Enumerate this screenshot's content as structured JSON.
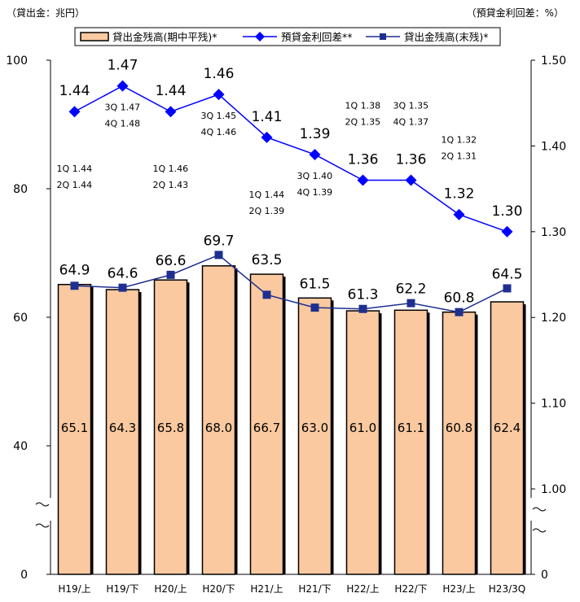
{
  "chart_data": {
    "type": "bar",
    "left_unit_label": "（貸出金：兆円）",
    "right_unit_label": "（預貸金利回差：%）",
    "categories": [
      "H19/上",
      "H19/下",
      "H20/上",
      "H20/下",
      "H21/上",
      "H21/下",
      "H22/上",
      "H22/下",
      "H23/上",
      "H23/3Q"
    ],
    "left_axis": {
      "ticks": [
        0,
        40,
        60,
        80,
        100
      ],
      "break": "0-40",
      "ylim": [
        40,
        100
      ]
    },
    "right_axis": {
      "ticks": [
        0,
        1.0,
        1.1,
        1.2,
        1.3,
        1.4,
        1.5
      ],
      "tick_labels": [
        "0",
        "1.00",
        "1.10",
        "1.20",
        "1.30",
        "1.40",
        "1.50"
      ],
      "break": "0-1.00",
      "ylim": [
        1.0,
        1.5
      ]
    },
    "series": [
      {
        "name": "貸出金残高(期中平残)*",
        "kind": "bar",
        "axis": "left",
        "color": "#FAC9A0",
        "values": [
          65.1,
          64.3,
          65.8,
          68.0,
          66.7,
          63.0,
          61.0,
          61.1,
          60.8,
          62.4
        ],
        "value_labels": [
          "65.1",
          "64.3",
          "65.8",
          "68.0",
          "66.7",
          "63.0",
          "61.0",
          "61.1",
          "60.8",
          "62.4"
        ]
      },
      {
        "name": "預貸金利回差**",
        "kind": "line",
        "axis": "right",
        "color": "#0000FF",
        "marker": "diamond",
        "values": [
          1.44,
          1.47,
          1.44,
          1.46,
          1.41,
          1.39,
          1.36,
          1.36,
          1.32,
          1.3
        ],
        "value_labels": [
          "1.44",
          "1.47",
          "1.44",
          "1.46",
          "1.41",
          "1.39",
          "1.36",
          "1.36",
          "1.32",
          "1.30"
        ]
      },
      {
        "name": "貸出金残高(末残)*",
        "kind": "line",
        "axis": "left",
        "color": "#1F2F8F",
        "marker": "square",
        "values": [
          64.9,
          64.6,
          66.6,
          69.7,
          63.5,
          61.5,
          61.3,
          62.2,
          60.8,
          64.5
        ],
        "value_labels": [
          "64.9",
          "64.6",
          "66.6",
          "69.7",
          "63.5",
          "61.5",
          "61.3",
          "62.2",
          "60.8",
          "64.5"
        ]
      }
    ],
    "quarter_notes": [
      {
        "index": 0,
        "lines": [
          "1Q  1.44",
          "2Q  1.44"
        ]
      },
      {
        "index": 1,
        "lines": [
          "3Q  1.47",
          "4Q  1.48"
        ]
      },
      {
        "index": 2,
        "lines": [
          "1Q  1.46",
          "2Q  1.43"
        ]
      },
      {
        "index": 3,
        "lines": [
          "3Q  1.45",
          "4Q  1.46"
        ]
      },
      {
        "index": 4,
        "lines": [
          "1Q  1.44",
          "2Q  1.39"
        ]
      },
      {
        "index": 5,
        "lines": [
          "3Q  1.40",
          "4Q  1.39"
        ]
      },
      {
        "index": 6,
        "lines": [
          "1Q  1.38",
          "2Q  1.35"
        ]
      },
      {
        "index": 7,
        "lines": [
          "3Q  1.35",
          "4Q  1.37"
        ]
      },
      {
        "index": 8,
        "lines": [
          "1Q  1.32",
          "2Q  1.31"
        ]
      }
    ],
    "legend_placement": "top",
    "grid": false
  }
}
